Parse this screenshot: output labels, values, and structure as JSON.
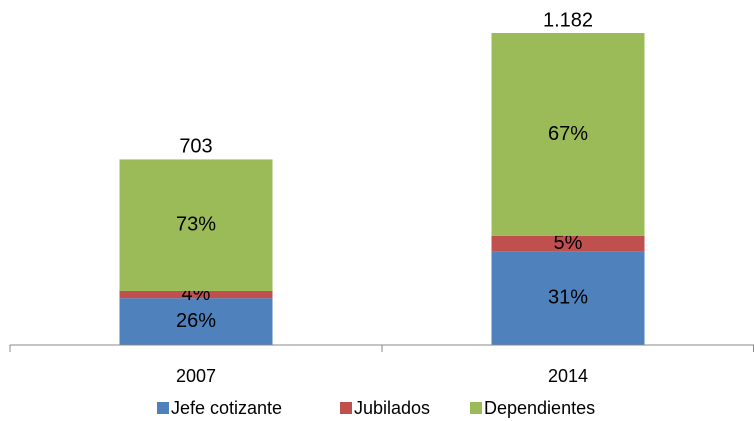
{
  "chart_data": {
    "type": "stacked_bar",
    "categories": [
      "2007",
      "2014"
    ],
    "series": [
      {
        "name": "Jefe cotizante",
        "color": "#4f81bd",
        "values": [
          26,
          31
        ],
        "value_labels": [
          "26%",
          "31%"
        ]
      },
      {
        "name": "Jubilados",
        "color": "#c0504d",
        "values": [
          4,
          5
        ],
        "value_labels": [
          "4%",
          "5%"
        ]
      },
      {
        "name": "Dependientes",
        "color": "#9bbb59",
        "values": [
          73,
          67
        ],
        "value_labels": [
          "73%",
          "67%"
        ]
      }
    ],
    "totals": {
      "values": [
        703,
        1182
      ],
      "value_labels": [
        "703",
        "1.182"
      ]
    },
    "legend": "bottom"
  }
}
